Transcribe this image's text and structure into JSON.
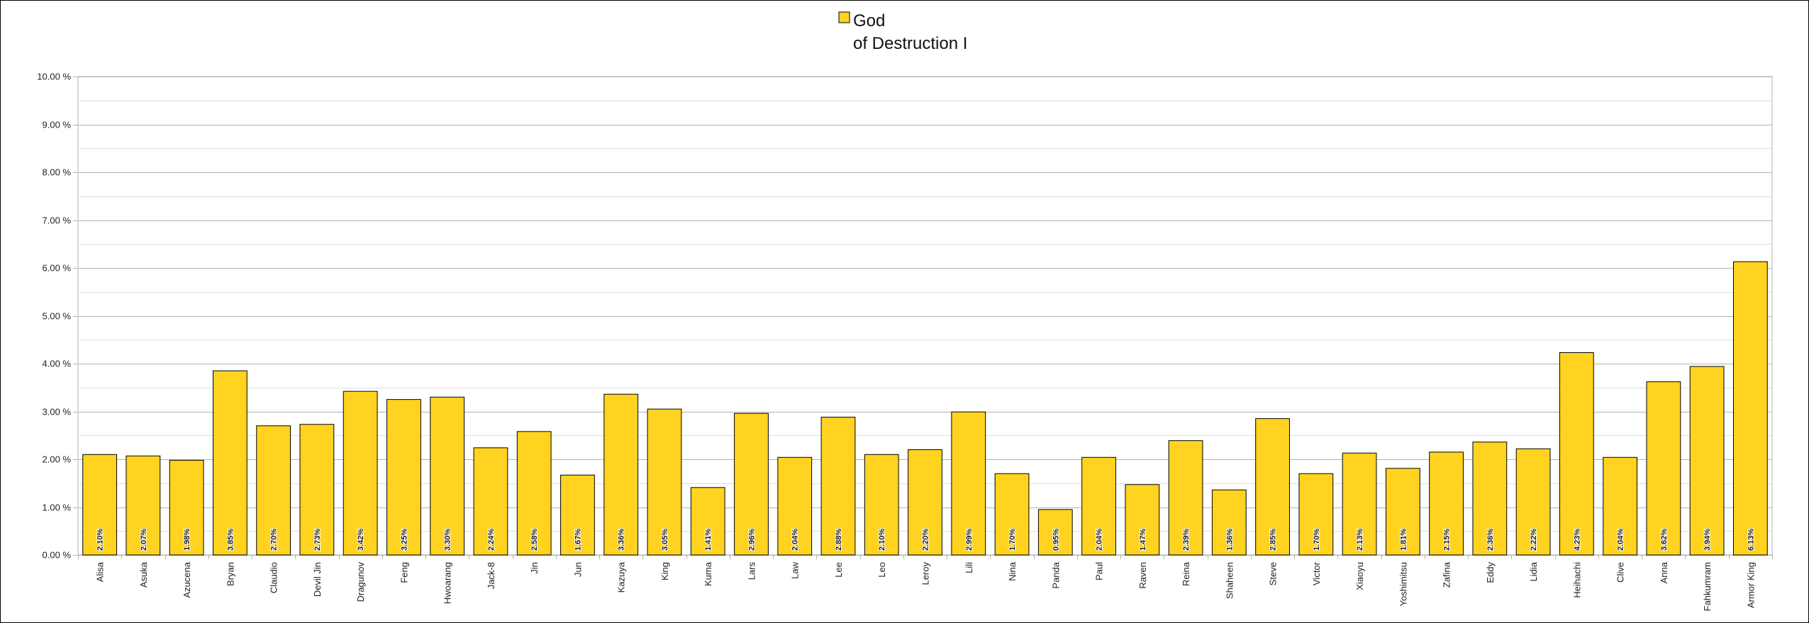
{
  "chart_data": {
    "type": "bar",
    "legend": {
      "label_line1": "God",
      "label_line2": "of Destruction I",
      "position": "top-center"
    },
    "series": [
      {
        "name": "God of Destruction I",
        "color": "#FFD320",
        "values": [
          2.1,
          2.07,
          1.98,
          3.85,
          2.7,
          2.73,
          3.42,
          3.25,
          3.3,
          2.24,
          2.58,
          1.67,
          3.36,
          3.05,
          1.41,
          2.96,
          2.04,
          2.88,
          2.1,
          2.2,
          2.99,
          1.7,
          0.95,
          2.04,
          1.47,
          2.39,
          1.36,
          2.85,
          1.7,
          2.13,
          1.81,
          2.15,
          2.36,
          2.22,
          4.23,
          2.04,
          3.62,
          3.94,
          6.13
        ],
        "data_labels": [
          "2.10%",
          "2.07%",
          "1.98%",
          "3.85%",
          "2.70%",
          "2.73%",
          "3.42%",
          "3.25%",
          "3.30%",
          "2.24%",
          "2.58%",
          "1.67%",
          "3.36%",
          "3.05%",
          "1.41%",
          "2.96%",
          "2.04%",
          "2.88%",
          "2.10%",
          "2.20%",
          "2.99%",
          "1.70%",
          "0.95%",
          "2.04%",
          "1.47%",
          "2.39%",
          "1.36%",
          "2.85%",
          "1.70%",
          "2.13%",
          "1.81%",
          "2.15%",
          "2.36%",
          "2.22%",
          "4.23%",
          "2.04%",
          "3.62%",
          "3.94%",
          "6.13%"
        ]
      }
    ],
    "categories": [
      "Alisa",
      "Asuka",
      "Azucena",
      "Bryan",
      "Claudio",
      "Devil Jin",
      "Dragunov",
      "Feng",
      "Hwoarang",
      "Jack-8",
      "Jin",
      "Jun",
      "Kazuya",
      "King",
      "Kuma",
      "Lars",
      "Law",
      "Lee",
      "Leo",
      "Leroy",
      "Lili",
      "Nina",
      "Panda",
      "Paul",
      "Raven",
      "Reina",
      "Shaheen",
      "Steve",
      "Victor",
      "Xiaoyu",
      "Yoshimitsu",
      "Zafina",
      "Eddy",
      "Lidia",
      "Heihachi",
      "Clive",
      "Anna",
      "Fahkumram",
      "Armor King"
    ],
    "ylim": [
      0,
      10
    ],
    "y_ticks": [
      0,
      1,
      2,
      3,
      4,
      5,
      6,
      7,
      8,
      9,
      10
    ],
    "y_tick_labels": [
      "0.00 %",
      "1.00 %",
      "2.00 %",
      "3.00 %",
      "4.00 %",
      "5.00 %",
      "6.00 %",
      "7.00 %",
      "8.00 %",
      "9.00 %",
      "10.00 %"
    ],
    "grid": {
      "major": true,
      "minor": true
    },
    "colors": {
      "bar_fill": "#FFD320",
      "bar_stroke": "#000000",
      "major_grid": "#b3b3b3",
      "minor_grid": "#dddddd"
    }
  }
}
